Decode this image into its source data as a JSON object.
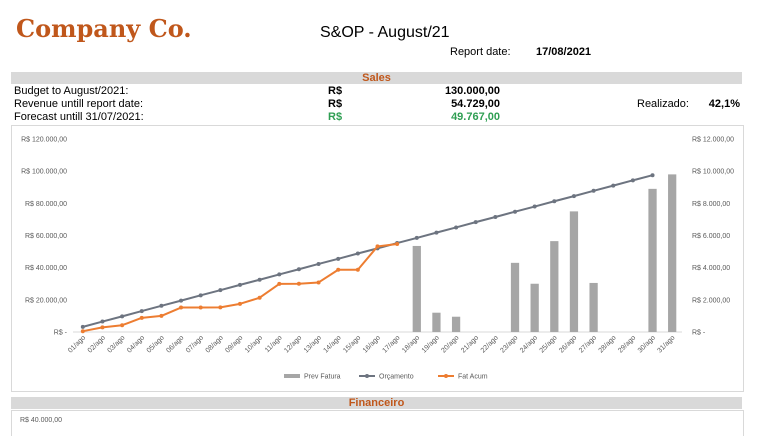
{
  "header": {
    "company": "Company Co.",
    "title": "S&OP - August/21",
    "report_label": "Report date:",
    "report_date": "17/08/2021"
  },
  "sales": {
    "section_title": "Sales",
    "rows": [
      {
        "label": "Budget to August/2021:",
        "currency": "R$",
        "value": "130.000,00"
      },
      {
        "label": "Revenue untill report date:",
        "currency": "R$",
        "value": "54.729,00"
      },
      {
        "label": "Forecast untill 31/07/2021:",
        "currency": "R$",
        "value": "49.767,00"
      }
    ],
    "realizado_label": "Realizado:",
    "realizado_value": "42,1%",
    "forecast_color": "#2e9e52"
  },
  "colors": {
    "brand": "#c0571b",
    "bar": "#a6a6a6",
    "budget_line": "#6d7480",
    "actual_line": "#ed7d31",
    "band": "#d9d9d9"
  },
  "chart_data": {
    "type": "bar",
    "categories": [
      "01/ago",
      "02/ago",
      "03/ago",
      "04/ago",
      "05/ago",
      "06/ago",
      "07/ago",
      "08/ago",
      "09/ago",
      "10/ago",
      "11/ago",
      "12/ago",
      "13/ago",
      "14/ago",
      "15/ago",
      "16/ago",
      "17/ago",
      "18/ago",
      "19/ago",
      "20/ago",
      "21/ago",
      "22/ago",
      "23/ago",
      "24/ago",
      "25/ago",
      "26/ago",
      "27/ago",
      "28/ago",
      "29/ago",
      "30/ago",
      "31/ago"
    ],
    "left_axis": {
      "ylim": [
        0,
        120000
      ],
      "ticks": [
        "R$ -",
        "R$ 20.000,00",
        "R$ 40.000,00",
        "R$ 60.000,00",
        "R$ 80.000,00",
        "R$ 100.000,00",
        "R$ 120.000,00"
      ]
    },
    "right_axis": {
      "ylim": [
        0,
        12000
      ],
      "ticks": [
        "R$ -",
        "R$ 2.000,00",
        "R$ 4.000,00",
        "R$ 6.000,00",
        "R$ 8.000,00",
        "R$ 10.000,00",
        "R$ 12.000,00"
      ]
    },
    "series": [
      {
        "name": "Prev Fatura",
        "type": "bar",
        "axis": "right",
        "values": [
          null,
          null,
          null,
          null,
          null,
          null,
          null,
          null,
          null,
          null,
          null,
          null,
          null,
          null,
          null,
          null,
          null,
          5350,
          1200,
          950,
          null,
          null,
          4300,
          3000,
          5650,
          7500,
          3050,
          null,
          null,
          8900,
          9800
        ]
      },
      {
        "name": "Orçamento",
        "type": "line",
        "axis": "left",
        "values": [
          3200,
          6500,
          9700,
          13000,
          16300,
          19500,
          22800,
          26000,
          29300,
          32500,
          35800,
          39000,
          42300,
          45500,
          48800,
          52000,
          55300,
          58500,
          61800,
          65000,
          68300,
          71500,
          74800,
          78000,
          81300,
          84500,
          87800,
          91000,
          94300,
          97500,
          null
        ]
      },
      {
        "name": "Fat Acum",
        "type": "line",
        "axis": "left",
        "values": [
          500,
          2900,
          4200,
          8800,
          10000,
          15200,
          15200,
          15300,
          17500,
          21300,
          29900,
          30000,
          30800,
          38700,
          38700,
          53200,
          54700,
          null,
          null,
          null,
          null,
          null,
          null,
          null,
          null,
          null,
          null,
          null,
          null,
          null,
          null
        ]
      }
    ],
    "legend_position": "bottom",
    "grid": false
  },
  "financeiro": {
    "section_title": "Financeiro",
    "tick_top": "R$ 40.000,00"
  }
}
